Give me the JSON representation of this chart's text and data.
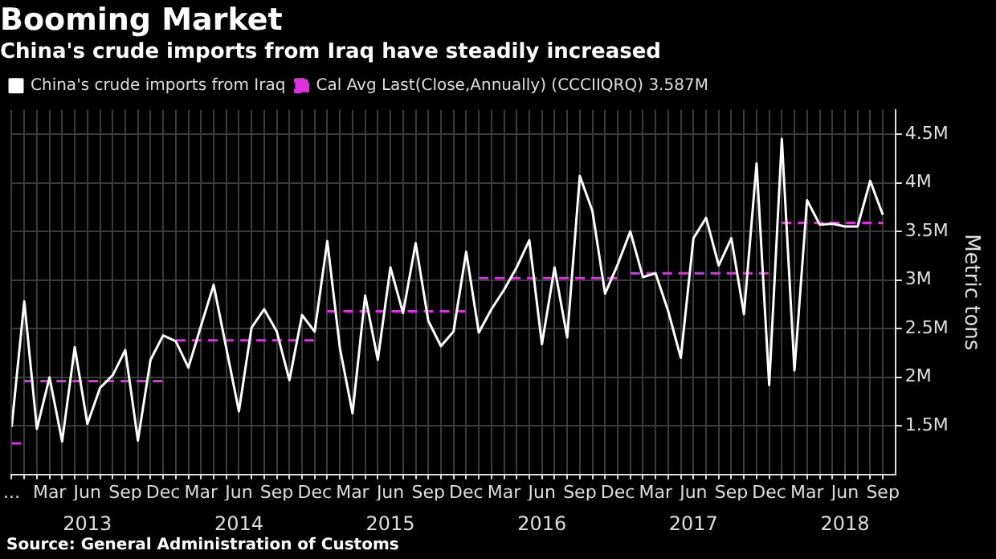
{
  "chart_data": {
    "type": "line",
    "title": "Booming Market",
    "subtitle": "China's crude imports from Iraq have steadily increased",
    "ylabel": "Metric tons",
    "annotations": [
      "Source: General Administration of Customs"
    ],
    "x": [
      "2012-12",
      "2013-01",
      "2013-02",
      "2013-03",
      "2013-04",
      "2013-05",
      "2013-06",
      "2013-07",
      "2013-08",
      "2013-09",
      "2013-10",
      "2013-11",
      "2013-12",
      "2014-01",
      "2014-02",
      "2014-03",
      "2014-04",
      "2014-05",
      "2014-06",
      "2014-07",
      "2014-08",
      "2014-09",
      "2014-10",
      "2014-11",
      "2014-12",
      "2015-01",
      "2015-02",
      "2015-03",
      "2015-04",
      "2015-05",
      "2015-06",
      "2015-07",
      "2015-08",
      "2015-09",
      "2015-10",
      "2015-11",
      "2015-12",
      "2016-01",
      "2016-02",
      "2016-03",
      "2016-04",
      "2016-05",
      "2016-06",
      "2016-07",
      "2016-08",
      "2016-09",
      "2016-10",
      "2016-11",
      "2016-12",
      "2017-01",
      "2017-02",
      "2017-03",
      "2017-04",
      "2017-05",
      "2017-06",
      "2017-07",
      "2017-08",
      "2017-09",
      "2017-10",
      "2017-11",
      "2017-12",
      "2018-01",
      "2018-02",
      "2018-03",
      "2018-04",
      "2018-05",
      "2018-06",
      "2018-07",
      "2018-08",
      "2018-09"
    ],
    "series": [
      {
        "name": "China's crude imports from Iraq",
        "color": "#ffffff",
        "values": [
          1.49,
          2.78,
          1.47,
          2.0,
          1.34,
          2.31,
          1.52,
          1.89,
          2.02,
          2.28,
          1.35,
          2.18,
          2.43,
          2.37,
          2.1,
          2.53,
          2.95,
          2.3,
          1.65,
          2.51,
          2.7,
          2.47,
          1.97,
          2.64,
          2.47,
          3.4,
          2.3,
          1.63,
          2.84,
          2.18,
          3.13,
          2.66,
          3.38,
          2.58,
          2.32,
          2.47,
          3.29,
          2.46,
          2.7,
          2.9,
          3.13,
          3.41,
          2.34,
          3.13,
          2.41,
          4.07,
          3.71,
          2.86,
          3.16,
          3.5,
          3.03,
          3.07,
          2.68,
          2.2,
          3.43,
          3.64,
          3.15,
          3.43,
          2.65,
          4.2,
          1.92,
          4.45,
          2.07,
          3.82,
          3.57,
          3.58,
          3.55,
          3.55,
          4.02,
          3.67
        ]
      },
      {
        "name": "Cal Avg Last(Close,Annually) (CCCIIQRQ) 3.587M",
        "color": "#e030e0",
        "line_style": "dashed",
        "x": [
          "2012-12-01",
          "2012-12-28",
          "2012-12-30",
          "2013-01",
          "2013-12",
          "2013-12-20",
          "2014-01",
          "2014-12",
          "2014-12-20",
          "2015-01",
          "2015-12",
          "2015-12-20",
          "2016-01",
          "2016-12",
          "2016-12-20",
          "2017-01",
          "2017-12",
          "2017-12-20",
          "2018-01",
          "2018-09"
        ],
        "values": [
          1.32,
          1.32,
          null,
          1.96,
          1.96,
          null,
          2.38,
          2.38,
          null,
          2.68,
          2.68,
          null,
          3.02,
          3.02,
          null,
          3.07,
          3.07,
          null,
          3.587,
          3.587
        ]
      }
    ],
    "xlim": [
      "2012-12",
      "2018-10"
    ],
    "xticks": [
      {
        "value": "2012-12",
        "label": "..."
      },
      {
        "value": "2013-01",
        "label": null
      },
      {
        "value": "2013-02",
        "label": null
      },
      {
        "value": "2013-03",
        "label": "Mar"
      },
      {
        "value": "2013-04",
        "label": null
      },
      {
        "value": "2013-05",
        "label": null
      },
      {
        "value": "2013-06",
        "label": "Jun"
      },
      {
        "value": "2013-07",
        "label": null
      },
      {
        "value": "2013-08",
        "label": null
      },
      {
        "value": "2013-09",
        "label": "Sep"
      },
      {
        "value": "2013-10",
        "label": null
      },
      {
        "value": "2013-11",
        "label": null
      },
      {
        "value": "2013-12",
        "label": "Dec"
      },
      {
        "value": "2014-01",
        "label": null
      },
      {
        "value": "2014-02",
        "label": null
      },
      {
        "value": "2014-03",
        "label": "Mar"
      },
      {
        "value": "2014-04",
        "label": null
      },
      {
        "value": "2014-05",
        "label": null
      },
      {
        "value": "2014-06",
        "label": "Jun"
      },
      {
        "value": "2014-07",
        "label": null
      },
      {
        "value": "2014-08",
        "label": null
      },
      {
        "value": "2014-09",
        "label": "Sep"
      },
      {
        "value": "2014-10",
        "label": null
      },
      {
        "value": "2014-11",
        "label": null
      },
      {
        "value": "2014-12",
        "label": "Dec"
      },
      {
        "value": "2015-01",
        "label": null
      },
      {
        "value": "2015-02",
        "label": null
      },
      {
        "value": "2015-03",
        "label": "Mar"
      },
      {
        "value": "2015-04",
        "label": null
      },
      {
        "value": "2015-05",
        "label": null
      },
      {
        "value": "2015-06",
        "label": "Jun"
      },
      {
        "value": "2015-07",
        "label": null
      },
      {
        "value": "2015-08",
        "label": null
      },
      {
        "value": "2015-09",
        "label": "Sep"
      },
      {
        "value": "2015-10",
        "label": null
      },
      {
        "value": "2015-11",
        "label": null
      },
      {
        "value": "2015-12",
        "label": "Dec"
      },
      {
        "value": "2016-01",
        "label": null
      },
      {
        "value": "2016-02",
        "label": null
      },
      {
        "value": "2016-03",
        "label": "Mar"
      },
      {
        "value": "2016-04",
        "label": null
      },
      {
        "value": "2016-05",
        "label": null
      },
      {
        "value": "2016-06",
        "label": "Jun"
      },
      {
        "value": "2016-07",
        "label": null
      },
      {
        "value": "2016-08",
        "label": null
      },
      {
        "value": "2016-09",
        "label": "Sep"
      },
      {
        "value": "2016-10",
        "label": null
      },
      {
        "value": "2016-11",
        "label": null
      },
      {
        "value": "2016-12",
        "label": "Dec"
      },
      {
        "value": "2017-01",
        "label": null
      },
      {
        "value": "2017-02",
        "label": null
      },
      {
        "value": "2017-03",
        "label": "Mar"
      },
      {
        "value": "2017-04",
        "label": null
      },
      {
        "value": "2017-05",
        "label": null
      },
      {
        "value": "2017-06",
        "label": "Jun"
      },
      {
        "value": "2017-07",
        "label": null
      },
      {
        "value": "2017-08",
        "label": null
      },
      {
        "value": "2017-09",
        "label": "Sep"
      },
      {
        "value": "2017-10",
        "label": null
      },
      {
        "value": "2017-11",
        "label": null
      },
      {
        "value": "2017-12",
        "label": "Dec"
      },
      {
        "value": "2018-01",
        "label": null
      },
      {
        "value": "2018-02",
        "label": null
      },
      {
        "value": "2018-03",
        "label": "Mar"
      },
      {
        "value": "2018-04",
        "label": null
      },
      {
        "value": "2018-05",
        "label": null
      },
      {
        "value": "2018-06",
        "label": "Jun"
      },
      {
        "value": "2018-07",
        "label": null
      },
      {
        "value": "2018-08",
        "label": null
      },
      {
        "value": "2018-09",
        "label": "Sep"
      }
    ],
    "x2lim": [
      "2012-12",
      "2018-10"
    ],
    "x2ticks": [
      {
        "value": "2013-06",
        "label": "2013"
      },
      {
        "value": "2014-06",
        "label": "2014"
      },
      {
        "value": "2015-06",
        "label": "2015"
      },
      {
        "value": "2016-06",
        "label": "2016"
      },
      {
        "value": "2017-06",
        "label": "2017"
      },
      {
        "value": "2018-06",
        "label": "2018"
      }
    ],
    "ylim": [
      1,
      4.75
    ],
    "yticks": [
      {
        "value": 1.5,
        "label": "1.5M"
      },
      {
        "value": 2,
        "label": "2M"
      },
      {
        "value": 2.5,
        "label": "2.5M"
      },
      {
        "value": 3,
        "label": "3M"
      },
      {
        "value": 3.5,
        "label": "3.5M"
      },
      {
        "value": 4,
        "label": "4M"
      },
      {
        "value": 4.5,
        "label": "4.5M"
      }
    ],
    "grid": true,
    "legend": "top left",
    "marker": "none",
    "line_style": "solid"
  }
}
